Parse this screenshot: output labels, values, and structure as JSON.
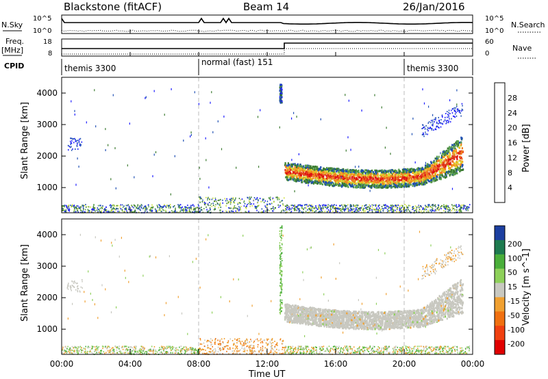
{
  "header": {
    "left_title": "Blackstone (fitACF)",
    "center_title": "Beam 14",
    "right_title": "26/Jan/2016"
  },
  "panel_labels": {
    "nsky": "N.Sky",
    "nsearch": "N.Search",
    "freq": "Freq.",
    "freq_unit": "[MHz]",
    "nave": "Nave",
    "cpid": "CPID",
    "nsky_ticks": [
      "10^5",
      "10^0"
    ],
    "nsearch_ticks": [
      "10^5",
      "10^0"
    ],
    "freq_ticks": [
      "18",
      "8"
    ],
    "nave_ticks": [
      "60",
      "0"
    ]
  },
  "cpid_segments": [
    {
      "label": "themis 3300",
      "start": "00:00",
      "end": "08:00"
    },
    {
      "label": "normal (fast) 151",
      "start": "08:00",
      "end": "20:00"
    },
    {
      "label": "themis 3300",
      "start": "20:00",
      "end": "24:00"
    }
  ],
  "colors": {
    "power_scale": [
      "#1a1aff",
      "#1f4fb4",
      "#3a7a2f",
      "#5aa050",
      "#cfe040",
      "#f0b020",
      "#f08020",
      "#e04020",
      "#e01010"
    ],
    "velocity_scale": [
      "#1c3fa0",
      "#1e7a50",
      "#4aae3a",
      "#8ed05a",
      "#c8c8c0",
      "#f0a030",
      "#f07010",
      "#f04010",
      "#e00000"
    ],
    "ground_scatter": "#c0c0bc"
  },
  "chart_data": [
    {
      "type": "heatmap",
      "title": "Power",
      "xlabel": "Time UT",
      "ylabel": "Slant Range [km]",
      "xlim": [
        "00:00",
        "24:00"
      ],
      "ylim": [
        200,
        4500
      ],
      "x_ticks": [
        "00:00",
        "04:00",
        "08:00",
        "12:00",
        "16:00",
        "20:00",
        "00:00"
      ],
      "y_ticks": [
        1000,
        2000,
        3000,
        4000
      ],
      "colorbar_label": "Power [dB]",
      "colorbar_ticks": [
        4,
        8,
        12,
        16,
        20,
        24,
        28
      ],
      "features": [
        {
          "time_range": [
            "13:00",
            "23:30"
          ],
          "range_km": [
            1100,
            2700
          ],
          "value_db": [
            12,
            28
          ]
        },
        {
          "time_range": [
            "00:00",
            "24:00"
          ],
          "range_km": [
            200,
            500
          ],
          "value_db": [
            4,
            12
          ]
        },
        {
          "time_range": [
            "12:40",
            "12:50"
          ],
          "range_km": [
            3700,
            4300
          ],
          "value_db": [
            4,
            8
          ]
        }
      ]
    },
    {
      "type": "heatmap",
      "title": "Velocity",
      "xlabel": "Time UT",
      "ylabel": "Slant Range [km]",
      "xlim": [
        "00:00",
        "24:00"
      ],
      "ylim": [
        200,
        4500
      ],
      "x_ticks": [
        "00:00",
        "04:00",
        "08:00",
        "12:00",
        "16:00",
        "20:00",
        "00:00"
      ],
      "y_ticks": [
        1000,
        2000,
        3000,
        4000
      ],
      "colorbar_label": "Velocity [m s^-1]",
      "colorbar_ticks": [
        200,
        100,
        50,
        15,
        -15,
        -50,
        -100,
        -200
      ],
      "features": [
        {
          "time_range": [
            "13:00",
            "23:30"
          ],
          "range_km": [
            1100,
            2700
          ],
          "value_mps": [
            -15,
            15
          ]
        },
        {
          "time_range": [
            "08:00",
            "13:00"
          ],
          "range_km": [
            200,
            600
          ],
          "value_mps": [
            -100,
            -15
          ]
        },
        {
          "time_range": [
            "12:40",
            "12:50"
          ],
          "range_km": [
            1500,
            4300
          ],
          "value_mps": [
            15,
            100
          ]
        }
      ]
    }
  ]
}
